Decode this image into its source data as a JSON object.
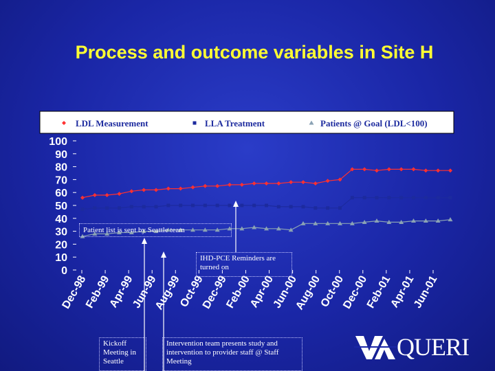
{
  "title": "Process and outcome variables in Site H",
  "notes": {
    "patient_list": "Patient list is sent  by Seattle  team",
    "ihd_pce": "IHD-PCE Reminders are turned on",
    "kickoff": "Kickoff Meeting in Seattle",
    "intervention": "Intervention team presents study and intervention to provider staff @ Staff Meeting"
  },
  "logo": {
    "text": "QUERI",
    "icon": "va-logo-icon"
  },
  "colors": {
    "background": "#1a26a6",
    "title": "#ffff33",
    "ldl_measurement": "#ff3030",
    "lla_treatment": "#1c2a9e",
    "patients_at_goal": "#8aa2b4"
  },
  "chart_data": {
    "type": "line",
    "title": "",
    "xlabel": "",
    "ylabel": "",
    "ylim": [
      0,
      100
    ],
    "yticks": [
      0,
      10,
      20,
      30,
      40,
      50,
      60,
      70,
      80,
      90,
      100
    ],
    "x_tick_labels": [
      "Dec-98",
      "Feb-99",
      "Apr-99",
      "Jun-99",
      "Aug-99",
      "Oct-99",
      "Dec-99",
      "Feb-00",
      "Apr-00",
      "Jun-00",
      "Aug-00",
      "Oct-00",
      "Dec-00",
      "Feb-01",
      "Apr-01",
      "Jun-01"
    ],
    "n_points": 31,
    "legend_position": "top",
    "series": [
      {
        "name": "LDL Measurement",
        "marker": "diamond",
        "values": [
          56,
          58,
          58,
          59,
          61,
          62,
          62,
          63,
          63,
          64,
          65,
          65,
          66,
          66,
          67,
          67,
          67,
          68,
          68,
          67,
          69,
          70,
          78,
          78,
          77,
          78,
          78,
          78,
          77,
          77,
          77
        ]
      },
      {
        "name": "LLA Treatment",
        "marker": "square",
        "values": [
          47,
          48,
          48,
          48,
          49,
          49,
          49,
          50,
          50,
          50,
          50,
          50,
          50,
          50,
          50,
          50,
          49,
          49,
          49,
          48,
          48,
          48,
          56,
          56,
          56,
          56,
          56,
          56,
          56,
          56,
          56
        ]
      },
      {
        "name": "Patients @ Goal (LDL<100)",
        "marker": "triangle",
        "values": [
          26,
          28,
          28,
          29,
          29,
          30,
          30,
          31,
          31,
          31,
          31,
          31,
          32,
          32,
          33,
          32,
          32,
          31,
          36,
          36,
          36,
          36,
          36,
          37,
          38,
          37,
          37,
          38,
          38,
          38,
          39
        ]
      }
    ]
  }
}
